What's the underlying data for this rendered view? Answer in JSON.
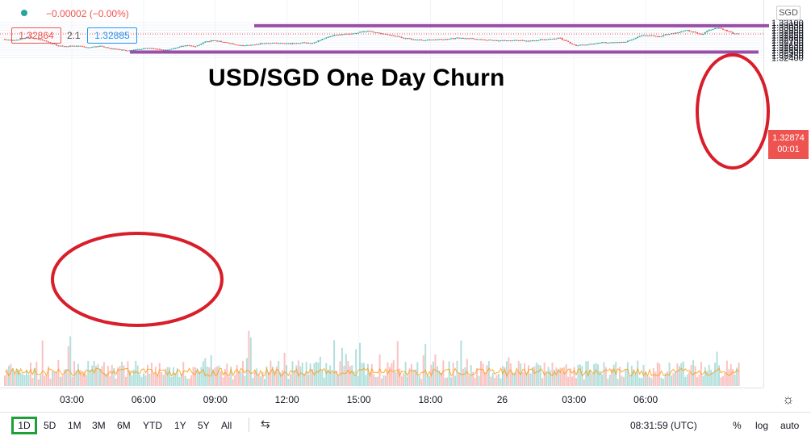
{
  "header": {
    "change": "−0.00002 (−0.00%)",
    "bid": "1.32864",
    "spread": "2.1",
    "ask": "1.32885"
  },
  "currency_label": "SGD",
  "annotation_title": "USD/SGD One Day Churn",
  "price_label": {
    "price": "1.32874",
    "countdown": "00:01"
  },
  "bottom_bar": {
    "ranges": [
      "1D",
      "5D",
      "1M",
      "3M",
      "6M",
      "YTD",
      "1Y",
      "5Y",
      "All"
    ],
    "active_range": "1D",
    "time": "08:31:59 (UTC)",
    "percent": "%",
    "log": "log",
    "auto": "auto"
  },
  "colors": {
    "up": "#26a69a",
    "down": "#ef5350",
    "line": "#9b4ea7",
    "circle": "#d81e2a"
  },
  "chart_data": {
    "type": "candlestick",
    "y_ticks": [
      "1.33100",
      "1.33050",
      "1.33000",
      "1.32950",
      "1.32900",
      "1.32850",
      "1.32800",
      "1.32750",
      "1.32700",
      "1.32650",
      "1.32600",
      "1.32550",
      "1.32500",
      "1.32450",
      "1.32400"
    ],
    "x_ticks": [
      "03:00",
      "06:00",
      "09:00",
      "12:00",
      "15:00",
      "18:00",
      "26",
      "03:00",
      "06:00"
    ],
    "ylim": [
      1.3237,
      1.3311
    ],
    "current_price": 1.32874,
    "close_path": [
      [
        0,
        1.3277
      ],
      [
        0.3,
        1.3274
      ],
      [
        1.0,
        1.3281
      ],
      [
        1.5,
        1.3276
      ],
      [
        2.2,
        1.3264
      ],
      [
        2.5,
        1.3262
      ],
      [
        3.0,
        1.3264
      ],
      [
        3.5,
        1.326
      ],
      [
        4.0,
        1.3263
      ],
      [
        4.5,
        1.3258
      ],
      [
        5.1,
        1.32545
      ],
      [
        5.5,
        1.3256
      ],
      [
        6.0,
        1.3259
      ],
      [
        6.3,
        1.3257
      ],
      [
        6.8,
        1.32555
      ],
      [
        7.2,
        1.326
      ],
      [
        7.6,
        1.3265
      ],
      [
        8.0,
        1.3262
      ],
      [
        8.3,
        1.327
      ],
      [
        8.7,
        1.3274
      ],
      [
        9.1,
        1.3272
      ],
      [
        9.5,
        1.3268
      ],
      [
        10.0,
        1.3264
      ],
      [
        10.5,
        1.3266
      ],
      [
        11.0,
        1.327
      ],
      [
        11.5,
        1.3269
      ],
      [
        12.0,
        1.3268
      ],
      [
        12.5,
        1.327
      ],
      [
        12.9,
        1.3269
      ],
      [
        13.3,
        1.3276
      ],
      [
        13.8,
        1.3285
      ],
      [
        14.3,
        1.3287
      ],
      [
        14.7,
        1.3288
      ],
      [
        15.0,
        1.3292
      ],
      [
        15.3,
        1.3293
      ],
      [
        15.8,
        1.3288
      ],
      [
        16.3,
        1.3284
      ],
      [
        16.8,
        1.3279
      ],
      [
        17.2,
        1.3276
      ],
      [
        17.6,
        1.3275
      ],
      [
        18.0,
        1.3276
      ],
      [
        18.5,
        1.3277
      ],
      [
        19.0,
        1.3279
      ],
      [
        19.5,
        1.3279
      ],
      [
        20.0,
        1.3276
      ],
      [
        20.5,
        1.3275
      ],
      [
        21.0,
        1.3274
      ],
      [
        21.5,
        1.3275
      ],
      [
        22.0,
        1.3273
      ],
      [
        22.5,
        1.3276
      ],
      [
        23.0,
        1.3277
      ],
      [
        23.3,
        1.3279
      ],
      [
        23.6,
        1.3272
      ],
      [
        24.0,
        1.3264
      ],
      [
        24.3,
        1.3266
      ],
      [
        24.7,
        1.3268
      ],
      [
        25.0,
        1.327
      ],
      [
        25.5,
        1.327
      ],
      [
        26.0,
        1.3271
      ],
      [
        26.3,
        1.3276
      ],
      [
        26.7,
        1.3283
      ],
      [
        27.0,
        1.3285
      ],
      [
        27.5,
        1.3282
      ],
      [
        27.8,
        1.3287
      ],
      [
        28.0,
        1.3288
      ],
      [
        28.3,
        1.329
      ],
      [
        28.6,
        1.3295
      ],
      [
        29.0,
        1.329
      ],
      [
        29.3,
        1.3287
      ],
      [
        29.6,
        1.3296
      ],
      [
        30.0,
        1.33
      ],
      [
        30.3,
        1.3294
      ],
      [
        30.6,
        1.3288
      ],
      [
        30.9,
        1.32874
      ]
    ],
    "annotations": {
      "title": "USD/SGD One Day Churn",
      "resistance": 1.33037,
      "support": 1.32512
    }
  }
}
